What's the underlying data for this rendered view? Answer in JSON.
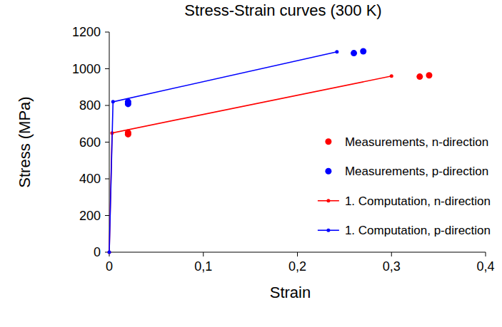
{
  "chart_data": {
    "type": "scatter",
    "title": "Stress-Strain curves (300 K)",
    "x_label": "Strain",
    "y_label": "Stress (MPa)",
    "xlim": [
      0,
      0.4
    ],
    "ylim": [
      0,
      1200
    ],
    "xticks": [
      0,
      {
        "value": 0.1,
        "label": "0,1"
      },
      {
        "value": 0.2,
        "label": "0,2"
      },
      {
        "value": 0.3,
        "label": "0,3"
      },
      {
        "value": 0.4,
        "label": "0,4"
      }
    ],
    "yticks": [
      0,
      200,
      400,
      600,
      800,
      1000,
      1200
    ],
    "grid": false,
    "legend": "lower right",
    "series": [
      {
        "name": "Measurements, n-direction",
        "type": "scatter",
        "color": "#ff0000",
        "marker": "circle",
        "x": [
          0.02,
          0.02,
          0.33,
          0.34
        ],
        "values": [
          643,
          652,
          957,
          964
        ]
      },
      {
        "name": "Measurements, p-direction",
        "type": "scatter",
        "color": "#0000ff",
        "marker": "circle",
        "x": [
          0.02,
          0.02,
          0.26,
          0.27
        ],
        "values": [
          808,
          820,
          1085,
          1095
        ]
      },
      {
        "name": "1. Computation, n-direction",
        "type": "line",
        "color": "#ff0000",
        "marker": "circle",
        "line_style": "solid",
        "x": [
          0,
          0.003,
          0.3
        ],
        "values": [
          0,
          650,
          960
        ]
      },
      {
        "name": "1. Computation, p-direction",
        "type": "line",
        "color": "#0000ff",
        "marker": "circle",
        "line_style": "solid",
        "x": [
          0,
          0.004,
          0.242
        ],
        "values": [
          0,
          820,
          1092
        ]
      }
    ]
  }
}
